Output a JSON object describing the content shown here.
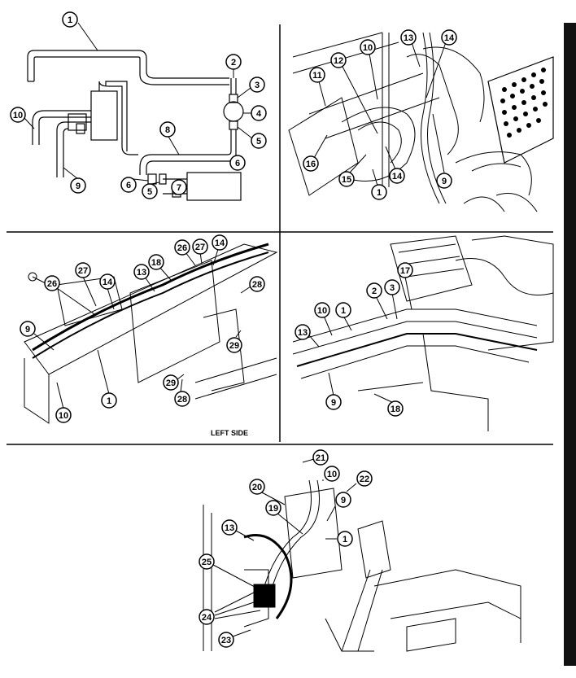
{
  "figure": {
    "panels": [
      {
        "id": "panel-top-left",
        "callouts": [
          {
            "label": "1"
          },
          {
            "label": "2"
          },
          {
            "label": "3"
          },
          {
            "label": "4"
          },
          {
            "label": "5"
          },
          {
            "label": "6"
          },
          {
            "label": "8"
          },
          {
            "label": "10"
          },
          {
            "label": "9"
          },
          {
            "label": "6"
          },
          {
            "label": "5"
          },
          {
            "label": "7"
          }
        ]
      },
      {
        "id": "panel-top-right",
        "callouts": [
          {
            "label": "13"
          },
          {
            "label": "14"
          },
          {
            "label": "10"
          },
          {
            "label": "12"
          },
          {
            "label": "11"
          },
          {
            "label": "16"
          },
          {
            "label": "15"
          },
          {
            "label": "14"
          },
          {
            "label": "1"
          },
          {
            "label": "9"
          }
        ]
      },
      {
        "id": "panel-middle-left",
        "caption": "LEFT SIDE",
        "callouts": [
          {
            "label": "26"
          },
          {
            "label": "27"
          },
          {
            "label": "14"
          },
          {
            "label": "18"
          },
          {
            "label": "13"
          },
          {
            "label": "28"
          },
          {
            "label": "27"
          },
          {
            "label": "26"
          },
          {
            "label": "14"
          },
          {
            "label": "9"
          },
          {
            "label": "29"
          },
          {
            "label": "1"
          },
          {
            "label": "29"
          },
          {
            "label": "28"
          },
          {
            "label": "10"
          }
        ]
      },
      {
        "id": "panel-middle-right",
        "callouts": [
          {
            "label": "17"
          },
          {
            "label": "2"
          },
          {
            "label": "3"
          },
          {
            "label": "10"
          },
          {
            "label": "1"
          },
          {
            "label": "13"
          },
          {
            "label": "9"
          },
          {
            "label": "18"
          }
        ]
      },
      {
        "id": "panel-bottom",
        "callouts": [
          {
            "label": "21"
          },
          {
            "label": "10"
          },
          {
            "label": "20"
          },
          {
            "label": "22"
          },
          {
            "label": "9"
          },
          {
            "label": "19"
          },
          {
            "label": "13"
          },
          {
            "label": "1"
          },
          {
            "label": "25"
          },
          {
            "label": "24"
          },
          {
            "label": "23"
          }
        ]
      }
    ]
  }
}
